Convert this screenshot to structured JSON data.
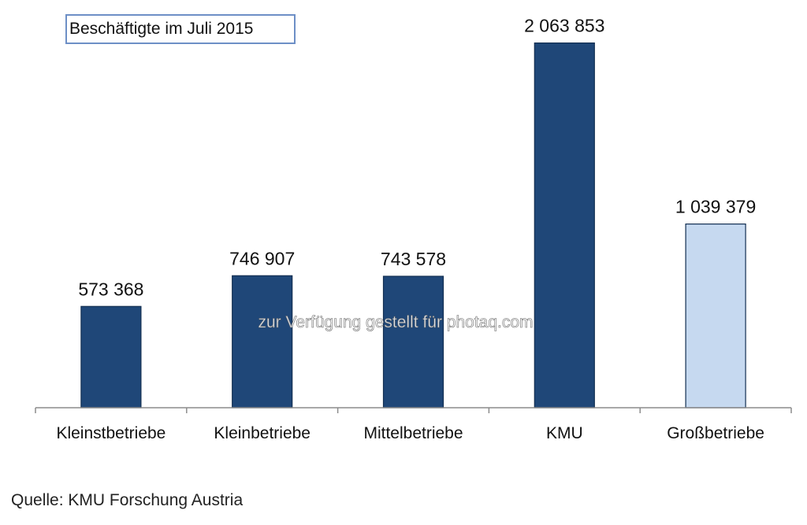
{
  "chart_data": {
    "type": "bar",
    "title": "Beschäftigte im Juli 2015",
    "categories": [
      "Kleinstbetriebe",
      "Kleinbetriebe",
      "Mittelbetriebe",
      "KMU",
      "Großbetriebe"
    ],
    "values": [
      573368,
      746907,
      743578,
      2063853,
      1039379
    ],
    "value_labels": [
      "573 368",
      "746 907",
      "743 578",
      "2 063 853",
      "1 039 379"
    ],
    "bar_colors": [
      "#1f4778",
      "#1f4778",
      "#1f4778",
      "#1f4778",
      "#c6d9f0"
    ],
    "xlabel": "",
    "ylabel": "",
    "ylim": [
      0,
      2200000
    ],
    "grid": false,
    "legend": "none"
  },
  "watermark": "zur Verfügung gestellt für photaq.com",
  "source": "Quelle: KMU Forschung Austria",
  "colors": {
    "bar_dark": "#1f4778",
    "bar_light": "#c6d9f0",
    "bar_border": "#132f52",
    "axis": "#8c8c8c",
    "title_border": "#6d8fc6"
  }
}
